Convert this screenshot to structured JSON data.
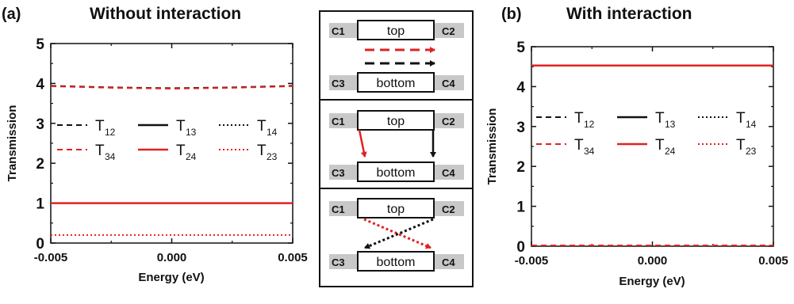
{
  "chart_data": [
    {
      "panel_label": "(a)",
      "title": "Without interaction",
      "type": "line",
      "xlabel": "Energy (eV)",
      "ylabel": "Transmission",
      "xlim": [
        -0.005,
        0.005
      ],
      "ylim": [
        0,
        5
      ],
      "xticks": [
        "-0.005",
        "0.000",
        "0.005"
      ],
      "yticks": [
        "0",
        "1",
        "2",
        "3",
        "4",
        "5"
      ],
      "legend": [
        {
          "label": "T",
          "sub": "12",
          "color": "#111111",
          "dash": "dashed"
        },
        {
          "label": "T",
          "sub": "13",
          "color": "#111111",
          "dash": "solid"
        },
        {
          "label": "T",
          "sub": "14",
          "color": "#111111",
          "dash": "dotted"
        },
        {
          "label": "T",
          "sub": "34",
          "color": "#e02222",
          "dash": "dashed"
        },
        {
          "label": "T",
          "sub": "24",
          "color": "#e02222",
          "dash": "solid"
        },
        {
          "label": "T",
          "sub": "23",
          "color": "#e02222",
          "dash": "dotted"
        }
      ],
      "series": [
        {
          "color": "#111111",
          "dash": "dashed",
          "x": [
            -0.005,
            -0.0025,
            0,
            0.0025,
            0.005
          ],
          "y": [
            3.94,
            3.9,
            3.88,
            3.9,
            3.94
          ]
        },
        {
          "color": "#e02222",
          "dash": "dashed",
          "x": [
            -0.005,
            -0.0025,
            0,
            0.0025,
            0.005
          ],
          "y": [
            3.93,
            3.89,
            3.87,
            3.89,
            3.93
          ]
        },
        {
          "color": "#e02222",
          "dash": "solid",
          "x": [
            -0.005,
            0.005
          ],
          "y": [
            1.0,
            1.0
          ]
        },
        {
          "color": "#e02222",
          "dash": "dotted",
          "x": [
            -0.005,
            0.005
          ],
          "y": [
            0.2,
            0.2
          ]
        }
      ]
    },
    {
      "panel_label": "(b)",
      "title": "With interaction",
      "type": "line",
      "xlabel": "Energy (eV)",
      "ylabel": "Transmission",
      "xlim": [
        -0.005,
        0.005
      ],
      "ylim": [
        0,
        5
      ],
      "xticks": [
        "-0.005",
        "0.000",
        "0.005"
      ],
      "yticks": [
        "0",
        "1",
        "2",
        "3",
        "4",
        "5"
      ],
      "legend": [
        {
          "label": "T",
          "sub": "12",
          "color": "#111111",
          "dash": "dashed"
        },
        {
          "label": "T",
          "sub": "13",
          "color": "#111111",
          "dash": "solid"
        },
        {
          "label": "T",
          "sub": "14",
          "color": "#111111",
          "dash": "dotted"
        },
        {
          "label": "T",
          "sub": "34",
          "color": "#e02222",
          "dash": "dashed"
        },
        {
          "label": "T",
          "sub": "24",
          "color": "#e02222",
          "dash": "solid"
        },
        {
          "label": "T",
          "sub": "23",
          "color": "#e02222",
          "dash": "dotted"
        }
      ],
      "series": [
        {
          "color": "#e02222",
          "dash": "solid",
          "x": [
            -0.005,
            0.005
          ],
          "y": [
            4.53,
            4.53
          ]
        },
        {
          "color": "#e02222",
          "dash": "dashed",
          "x": [
            -0.005,
            0.005
          ],
          "y": [
            0.02,
            0.02
          ]
        }
      ]
    }
  ],
  "diagram": {
    "contacts": [
      "C1",
      "C2",
      "C3",
      "C4"
    ],
    "top_label": "top",
    "bottom_label": "bottom",
    "colors": {
      "red": "#e02222",
      "black": "#111111",
      "gray": "#c8c8c8"
    }
  }
}
